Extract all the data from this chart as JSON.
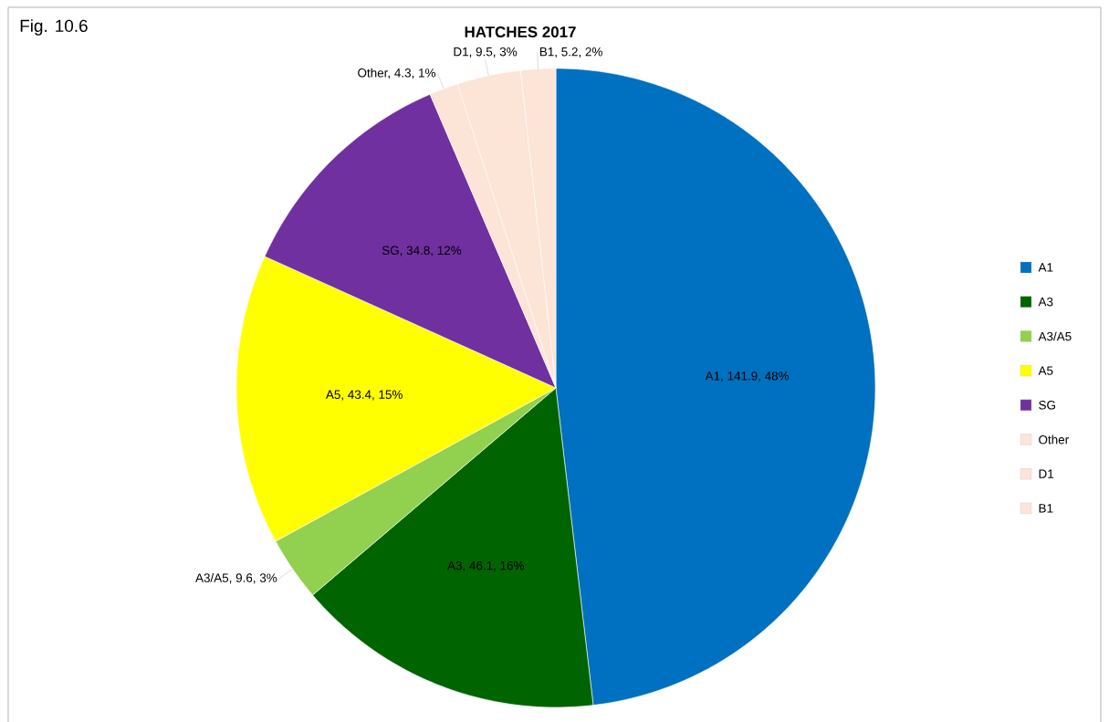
{
  "chart_data": {
    "type": "pie",
    "title": "HATCHES 2017",
    "categories": [
      "A1",
      "A3",
      "A3/A5",
      "A5",
      "SG",
      "Other",
      "D1",
      "B1"
    ],
    "values": [
      141.9,
      46.1,
      9.6,
      43.4,
      34.8,
      4.3,
      9.5,
      5.2
    ],
    "colors": [
      "#0070c0",
      "#006400",
      "#92d050",
      "#ffff00",
      "#7030a0",
      "#fce4d6",
      "#fce4d6",
      "#fce4d6"
    ],
    "value_labels": [
      "A1, 141.9, 48%",
      "A3, 46.1, 16%",
      "A3/A5, 9.6, 3%",
      "A5, 43.4, 15%",
      "SG, 34.8, 12%",
      "Other, 4.3, 1%",
      "D1, 9.5, 3%",
      "B1, 5.2, 2%"
    ],
    "legend": "right",
    "annotations": [
      "Fig. 10.6"
    ]
  }
}
